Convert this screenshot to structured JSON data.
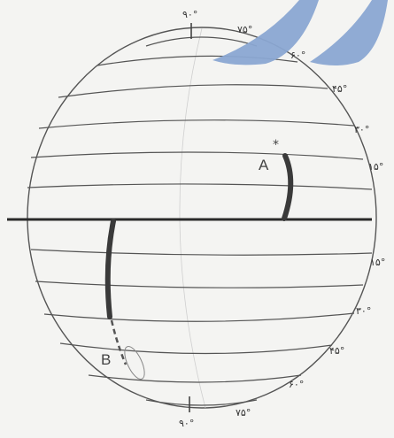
{
  "diagram": {
    "labels": {
      "north_90": "۹۰°",
      "north_75": "۷۵°",
      "north_60": "۶۰°",
      "north_45": "۴۵°",
      "north_30": "۳۰°",
      "north_15": "۱۵°",
      "south_15": "۱۵°",
      "south_30": "۳۰°",
      "south_45": "۴۵°",
      "south_60": "۶۰°",
      "south_75": "۷۵°",
      "south_90": "۹۰°"
    },
    "points": {
      "a": "A",
      "b": "B"
    }
  },
  "colors": {
    "line": "#555555",
    "equator": "#2a2a2a",
    "trace": "#3a3a3a",
    "accent_shape": "#8aa6d2"
  }
}
